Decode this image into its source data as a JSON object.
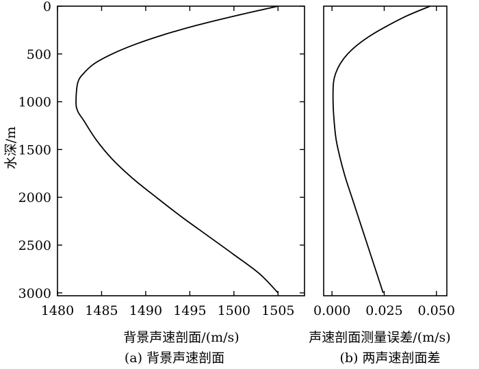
{
  "chart_data": [
    {
      "type": "line",
      "xlabel": "背景声速剖面/(m/s)",
      "ylabel": "水深/m",
      "caption": "(a) 背景声速剖面",
      "xlim": [
        1480,
        1508
      ],
      "ylim": [
        0,
        3030
      ],
      "y_inverted": true,
      "xticks": [
        "1480",
        "1485",
        "1490",
        "1495",
        "1500",
        "1505"
      ],
      "yticks": [
        "0",
        "500",
        "1000",
        "1500",
        "2000",
        "2500",
        "3000"
      ],
      "grid": false,
      "series": [
        {
          "x": [
            1505.0,
            1500.2,
            1495.8,
            1492.0,
            1488.8,
            1486.2,
            1484.2,
            1483.0,
            1482.3,
            1482.1,
            1482.3,
            1483.0,
            1484.4,
            1486.2,
            1488.5,
            1491.2,
            1494.0,
            1497.0,
            1500.0,
            1502.9,
            1505.0
          ],
          "y": [
            0,
            100,
            200,
            300,
            400,
            500,
            600,
            700,
            800,
            1000,
            1100,
            1200,
            1400,
            1600,
            1800,
            2000,
            2200,
            2400,
            2600,
            2800,
            3000
          ]
        }
      ]
    },
    {
      "type": "line",
      "xlabel": "声速剖面测量误差/(m/s)",
      "ylabel": "",
      "caption": "(b) 两声速剖面差",
      "xlim": [
        -0.004,
        0.055
      ],
      "ylim": [
        0,
        3030
      ],
      "y_inverted": true,
      "xticks": [
        "0.000",
        "0.025",
        "0.050"
      ],
      "yticks": [],
      "grid": false,
      "series": [
        {
          "x": [
            0.047,
            0.036,
            0.027,
            0.019,
            0.0125,
            0.0075,
            0.004,
            0.0018,
            0.0007,
            0.0005,
            0.001,
            0.002,
            0.004,
            0.0065,
            0.0095,
            0.0125,
            0.0155,
            0.0185,
            0.0215,
            0.0245
          ],
          "y": [
            0,
            100,
            200,
            300,
            400,
            500,
            600,
            700,
            800,
            1000,
            1200,
            1400,
            1600,
            1800,
            2000,
            2200,
            2400,
            2600,
            2800,
            3000
          ]
        }
      ]
    }
  ]
}
